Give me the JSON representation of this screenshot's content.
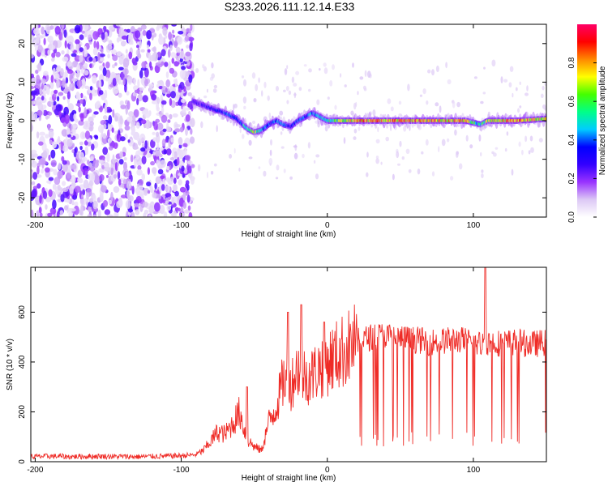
{
  "figure_title": "S233.2026.111.12.14.E33",
  "colors": {
    "snr_line": "#ef2b26",
    "axis": "#000000",
    "background": "#ffffff"
  },
  "chart_data": [
    {
      "type": "heatmap",
      "name": "spectrogram",
      "xlabel": "Height of straight line (km)",
      "ylabel": "Frequency (Hz)",
      "xlim": [
        -203,
        150
      ],
      "ylim": [
        -25,
        25
      ],
      "x_ticks": [
        -200,
        -100,
        0,
        100
      ],
      "y_ticks": [
        -20,
        -10,
        0,
        10,
        20
      ],
      "colorbar": {
        "label": "Normalized spectral amplitude",
        "range": [
          0,
          1
        ],
        "ticks": [
          0.0,
          0.2,
          0.4,
          0.6,
          0.8
        ],
        "tick_labels": [
          "0.0",
          "0.2",
          "0.4",
          "0.6",
          "0.8"
        ],
        "colormap": [
          "#ffffff",
          "#dcc8f5",
          "#9933ff",
          "#3300ff",
          "#0000ff",
          "#00ccff",
          "#00ff88",
          "#44ff00",
          "#ffff00",
          "#ff8800",
          "#ff0000",
          "#ff0066"
        ]
      },
      "noise_region_x": [
        -203,
        -92
      ],
      "frequency_track": {
        "x": [
          -92,
          -85,
          -78,
          -70,
          -62,
          -55,
          -50,
          -45,
          -40,
          -35,
          -30,
          -25,
          -20,
          -15,
          -10,
          -5,
          0,
          10,
          20,
          40,
          60,
          80,
          95,
          100,
          105,
          110,
          130,
          150
        ],
        "freq_hz": [
          5,
          4,
          3,
          2,
          0.5,
          -2,
          -3,
          -2.5,
          -1,
          0,
          -1,
          -1.5,
          0,
          1,
          2,
          1,
          0,
          0,
          0,
          0,
          0,
          0,
          0,
          -0.5,
          -1,
          0,
          0,
          0.5
        ],
        "peak_amplitude": [
          0.25,
          0.3,
          0.35,
          0.4,
          0.4,
          0.6,
          0.75,
          0.5,
          0.4,
          0.45,
          0.4,
          0.35,
          0.4,
          0.45,
          0.45,
          0.5,
          0.55,
          0.7,
          0.8,
          0.85,
          0.85,
          0.8,
          0.85,
          0.6,
          0.5,
          0.75,
          0.85,
          0.8
        ]
      }
    },
    {
      "type": "line",
      "name": "snr",
      "xlabel": "Height of straight line (km)",
      "ylabel": "SNR (10 * v/v)",
      "xlim": [
        -203,
        150
      ],
      "ylim": [
        0,
        780
      ],
      "x_ticks": [
        -200,
        -100,
        0,
        100
      ],
      "y_ticks": [
        0,
        200,
        400,
        600
      ],
      "series": [
        {
          "name": "SNR",
          "x": [
            -203,
            -190,
            -175,
            -160,
            -145,
            -130,
            -115,
            -100,
            -90,
            -85,
            -80,
            -75,
            -70,
            -65,
            -60,
            -55,
            -50,
            -45,
            -40,
            -35,
            -30,
            -25,
            -20,
            -15,
            -10,
            -5,
            0,
            5,
            10,
            15,
            20,
            25,
            30,
            35,
            40,
            45,
            50,
            60,
            70,
            80,
            90,
            100,
            105,
            110,
            120,
            130,
            140,
            150
          ],
          "y": [
            20,
            22,
            20,
            22,
            21,
            20,
            22,
            24,
            28,
            45,
            80,
            120,
            110,
            150,
            200,
            90,
            60,
            45,
            160,
            220,
            330,
            310,
            380,
            340,
            350,
            380,
            400,
            420,
            440,
            460,
            480,
            490,
            500,
            505,
            505,
            500,
            495,
            490,
            480,
            485,
            490,
            480,
            470,
            480,
            475,
            480,
            470,
            480
          ],
          "spikes": [
            {
              "x": -55,
              "y": 300
            },
            {
              "x": -27,
              "y": 600
            },
            {
              "x": -18,
              "y": 630
            },
            {
              "x": -2,
              "y": 560
            },
            {
              "x": 108,
              "y": 780
            }
          ]
        }
      ]
    }
  ]
}
